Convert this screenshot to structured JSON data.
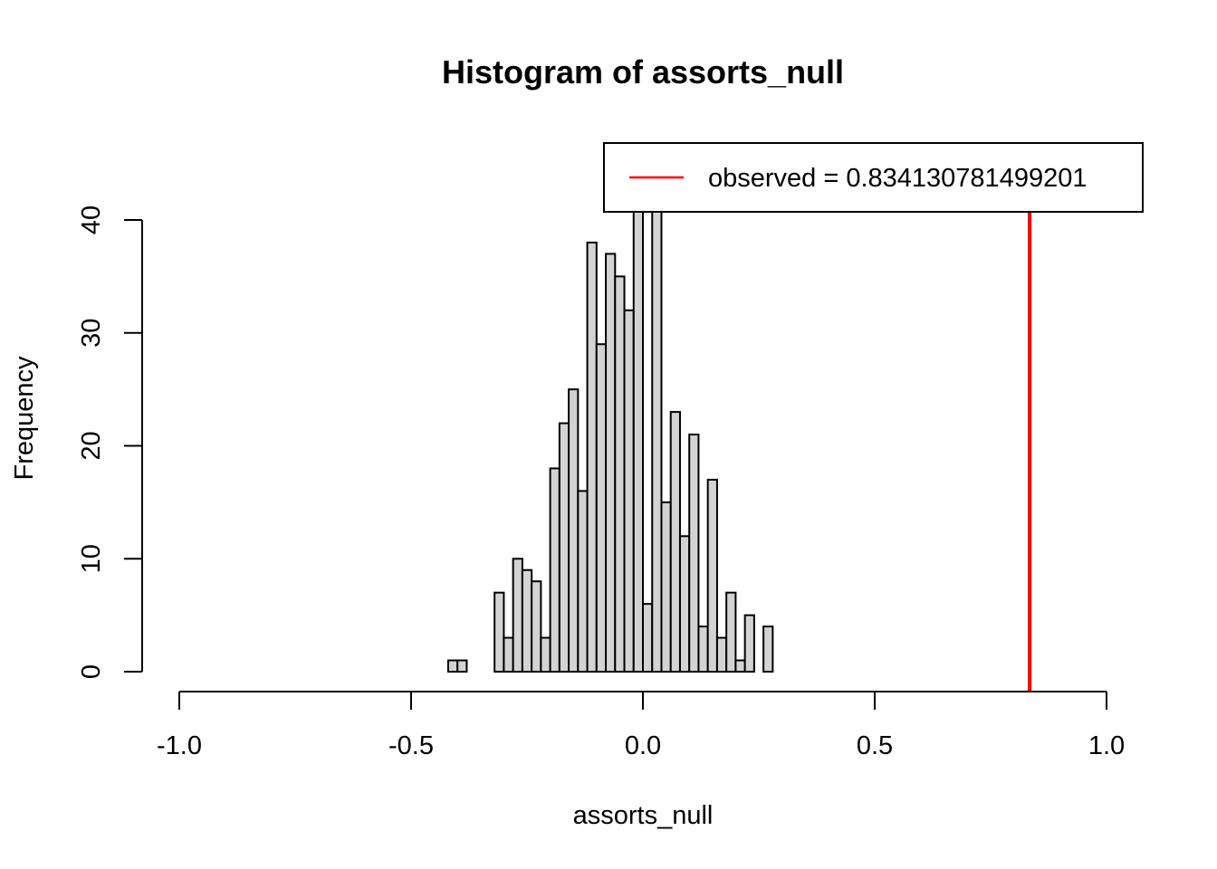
{
  "chart_data": {
    "type": "bar",
    "title": "Histogram of assorts_null",
    "xlabel": "assorts_null",
    "ylabel": "Frequency",
    "xlim": [
      -1.0,
      1.0
    ],
    "ylim": [
      0,
      40
    ],
    "grid": false,
    "x_ticks": [
      "-1.0",
      "-0.5",
      "0.0",
      "0.5",
      "1.0"
    ],
    "y_ticks": [
      "0",
      "10",
      "20",
      "30",
      "40"
    ],
    "bin_width": 0.02,
    "bin_start": -0.42,
    "counts": [
      1,
      1,
      0,
      0,
      0,
      7,
      3,
      10,
      9,
      8,
      3,
      18,
      22,
      25,
      16,
      38,
      29,
      37,
      35,
      32,
      41,
      6,
      41,
      15,
      23,
      12,
      21,
      4,
      17,
      3,
      7,
      1,
      5,
      0,
      4
    ],
    "observed_line": {
      "value": 0.834130781499201,
      "color": "#ff0000"
    },
    "legend": {
      "position": "top-right",
      "entries": [
        {
          "label": "observed = 0.834130781499201",
          "color": "#ff0000"
        }
      ]
    },
    "colors": {
      "bar_fill": "#d3d3d3",
      "bar_stroke": "#000000"
    }
  }
}
